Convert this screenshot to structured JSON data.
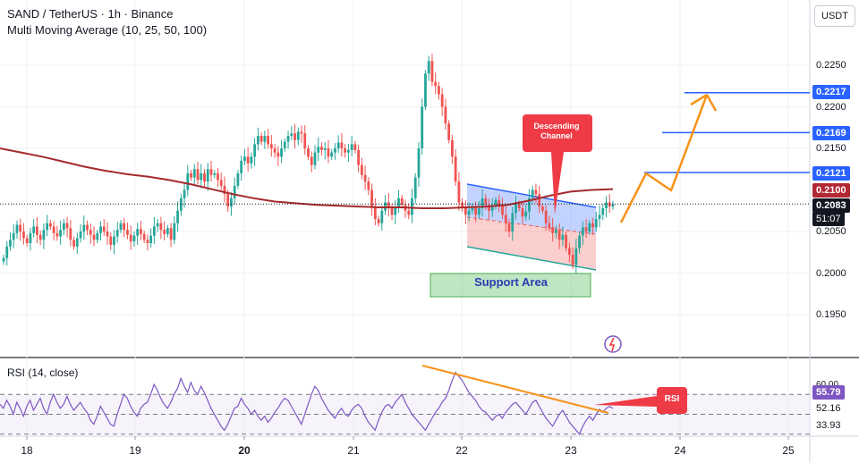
{
  "header": {
    "title": "SAND / TetherUS · 1h · Binance",
    "indicator": "Multi Moving Average (10, 25, 50, 100)"
  },
  "currency_button": "USDT",
  "chart_data": {
    "type": "candlestick",
    "symbol": "SAND / TetherUS",
    "interval": "1h",
    "exchange": "Binance",
    "y_ticks": [
      "0.2250",
      "0.2200",
      "0.2150",
      "0.2050",
      "0.2000",
      "0.1950"
    ],
    "ylim": [
      0.1905,
      0.2287
    ],
    "x_ticks": [
      "18",
      "19",
      "20",
      "21",
      "22",
      "23",
      "24",
      "25"
    ],
    "bold_x_ticks": [
      "20"
    ],
    "price_tags": [
      {
        "value": "0.2217",
        "color": "#2962ff"
      },
      {
        "value": "0.2169",
        "color": "#2962ff"
      },
      {
        "value": "0.2121",
        "color": "#2962ff"
      },
      {
        "value": "0.2100",
        "color": "#b22833"
      }
    ],
    "last_price": "0.2083",
    "countdown": "51:07",
    "resistance_levels": [
      0.2121,
      0.2169,
      0.2217
    ],
    "moving_average_value": 0.21,
    "close_series": [
      0.2018,
      0.2032,
      0.204,
      0.2048,
      0.2058,
      0.205,
      0.2042,
      0.2036,
      0.2048,
      0.2056,
      0.2046,
      0.204,
      0.2052,
      0.206,
      0.2056,
      0.2048,
      0.2044,
      0.2052,
      0.206,
      0.2054,
      0.204,
      0.2032,
      0.2042,
      0.205,
      0.2058,
      0.2052,
      0.2046,
      0.204,
      0.2048,
      0.2056,
      0.205,
      0.2044,
      0.2034,
      0.2044,
      0.2052,
      0.206,
      0.2052,
      0.2046,
      0.2038,
      0.2045,
      0.2053,
      0.2047,
      0.204,
      0.2036,
      0.2045,
      0.2056,
      0.206,
      0.2052,
      0.2047,
      0.2054,
      0.204,
      0.206,
      0.2075,
      0.209,
      0.21,
      0.212,
      0.2115,
      0.2125,
      0.2112,
      0.212,
      0.211,
      0.2125,
      0.2118,
      0.212,
      0.2112,
      0.2105,
      0.2095,
      0.208,
      0.209,
      0.2105,
      0.212,
      0.2135,
      0.214,
      0.2132,
      0.214,
      0.2155,
      0.2165,
      0.2158,
      0.2165,
      0.2155,
      0.215,
      0.2145,
      0.214,
      0.215,
      0.2158,
      0.2165,
      0.2168,
      0.216,
      0.217,
      0.2168,
      0.215,
      0.214,
      0.213,
      0.2145,
      0.2152,
      0.2148,
      0.215,
      0.214,
      0.2145,
      0.215,
      0.2157,
      0.215,
      0.2145,
      0.2148,
      0.2155,
      0.2148,
      0.213,
      0.2118,
      0.211,
      0.21,
      0.208,
      0.2065,
      0.206,
      0.2075,
      0.2085,
      0.2078,
      0.207,
      0.208,
      0.209,
      0.2082,
      0.2075,
      0.207,
      0.209,
      0.2115,
      0.215,
      0.22,
      0.224,
      0.2255,
      0.223,
      0.2225,
      0.2215,
      0.22,
      0.218,
      0.216,
      0.214,
      0.211,
      0.2085,
      0.208,
      0.207,
      0.2075,
      0.208,
      0.207,
      0.2078,
      0.209,
      0.2082,
      0.2075,
      0.208,
      0.2088,
      0.2082,
      0.207,
      0.206,
      0.205,
      0.2072,
      0.2083,
      0.2078,
      0.2068,
      0.2074,
      0.209,
      0.21,
      0.2095,
      0.208,
      0.2075,
      0.206,
      0.2055,
      0.2048,
      0.2052,
      0.204,
      0.2046,
      0.203,
      0.2022,
      0.201,
      0.203,
      0.2045,
      0.2055,
      0.205,
      0.206,
      0.2055,
      0.2065,
      0.207,
      0.2078,
      0.2085,
      0.208,
      0.2083
    ],
    "ma_series": [
      0.215,
      0.2145,
      0.214,
      0.2134,
      0.2128,
      0.2123,
      0.2119,
      0.2116,
      0.2112,
      0.2107,
      0.2101,
      0.2095,
      0.209,
      0.2086,
      0.2084,
      0.2082,
      0.2081,
      0.208,
      0.2079,
      0.2079,
      0.2078,
      0.2078,
      0.2079,
      0.208,
      0.2082,
      0.2087,
      0.2093,
      0.2098,
      0.21,
      0.2101
    ],
    "rsi": {
      "title": "RSI (14, close)",
      "value": "55.79",
      "ticks": [
        "60.00",
        "52.16",
        "33.93"
      ],
      "series": [
        60,
        56,
        64,
        58,
        50,
        62,
        56,
        48,
        58,
        64,
        54,
        60,
        66,
        56,
        50,
        62,
        70,
        62,
        56,
        60,
        68,
        60,
        54,
        58,
        62,
        56,
        52,
        44,
        40,
        48,
        58,
        52,
        46,
        40,
        38,
        50,
        60,
        70,
        66,
        58,
        52,
        48,
        56,
        60,
        62,
        70,
        80,
        74,
        66,
        60,
        56,
        62,
        70,
        76,
        86,
        78,
        72,
        82,
        74,
        70,
        78,
        72,
        64,
        56,
        50,
        44,
        38,
        34,
        40,
        48,
        56,
        58,
        66,
        60,
        56,
        50,
        54,
        48,
        44,
        48,
        42,
        46,
        52,
        56,
        62,
        66,
        64,
        58,
        52,
        46,
        40,
        50,
        60,
        70,
        78,
        74,
        66,
        60,
        54,
        50,
        46,
        52,
        56,
        50,
        48,
        54,
        58,
        60,
        56,
        48,
        42,
        38,
        34,
        44,
        52,
        58,
        60,
        56,
        62,
        66,
        70,
        62,
        56,
        50,
        46,
        42,
        38,
        34,
        40,
        46,
        52,
        56,
        62,
        66,
        74,
        84,
        92,
        88,
        84,
        78,
        72,
        68,
        64,
        58,
        54,
        52,
        48,
        44,
        48,
        50,
        46,
        52,
        56,
        60,
        62,
        58,
        54,
        50,
        56,
        62,
        64,
        58,
        52,
        46,
        42,
        38,
        44,
        50,
        54,
        48,
        42,
        38,
        34,
        30,
        38,
        44,
        48,
        44,
        50,
        55,
        52,
        56,
        58,
        55.79
      ],
      "guide_levels": [
        70,
        50,
        30
      ],
      "ylim": [
        28,
        98
      ]
    },
    "annotations": {
      "descending_channel": "Descending Channel",
      "support_area": "Support Area",
      "rsi_label": "RSI"
    }
  },
  "colors": {
    "up": "#26a69a",
    "down": "#ef5350",
    "ma": "#a52a2a",
    "level": "#2962ff",
    "projection": "#f7931a",
    "rsi_line": "#7e57c2"
  }
}
